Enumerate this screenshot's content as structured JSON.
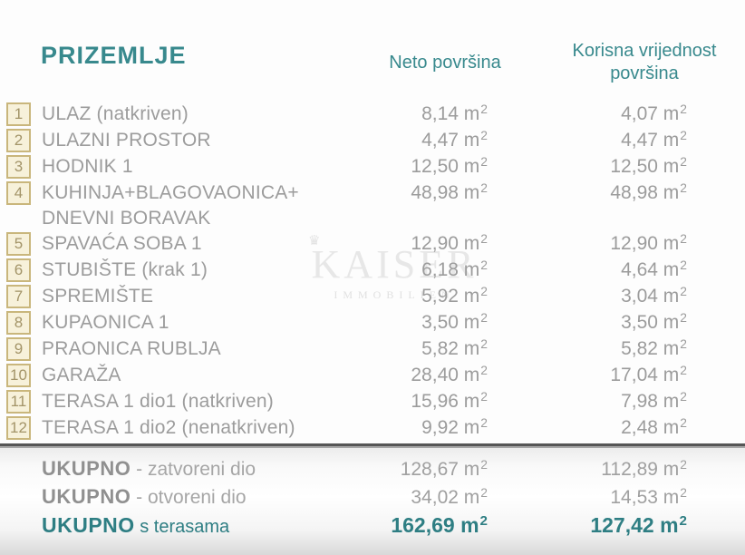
{
  "page": {
    "title": "PRIZEMLJE",
    "columns": {
      "neto": "Neto površina",
      "korisna": "Korisna vrijednost površina"
    }
  },
  "units": {
    "base": "m",
    "sup": "2"
  },
  "rows": [
    {
      "num": "1",
      "name": "ULAZ (natkriven)",
      "neto": "8,14",
      "korisna": "4,07"
    },
    {
      "num": "2",
      "name": "ULAZNI PROSTOR",
      "neto": "4,47",
      "korisna": "4,47"
    },
    {
      "num": "3",
      "name": "HODNIK 1",
      "neto": "12,50",
      "korisna": "12,50"
    },
    {
      "num": "4",
      "name": "KUHINJA+BLAGOVAONICA+",
      "name2": "DNEVNI BORAVAK",
      "neto": "48,98",
      "korisna": "48,98"
    },
    {
      "num": "5",
      "name": "SPAVAĆA SOBA 1",
      "neto": "12,90",
      "korisna": "12,90"
    },
    {
      "num": "6",
      "name": "STUBIŠTE  (krak 1)",
      "neto": "6,18",
      "korisna": "4,64"
    },
    {
      "num": "7",
      "name": "SPREMIŠTE",
      "neto": "5,92",
      "korisna": "3,04"
    },
    {
      "num": "8",
      "name": "KUPAONICA 1",
      "neto": "3,50",
      "korisna": "3,50"
    },
    {
      "num": "9",
      "name": "PRAONICA RUBLJA",
      "neto": "5,82",
      "korisna": "5,82"
    },
    {
      "num": "10",
      "name": "GARAŽA",
      "neto": "28,40",
      "korisna": "17,04"
    },
    {
      "num": "11",
      "name": "TERASA 1 dio1 (natkriven)",
      "neto": "15,96",
      "korisna": "7,98"
    },
    {
      "num": "12",
      "name": "TERASA 1 dio2 (nenatkriven)",
      "neto": "9,92",
      "korisna": "2,48"
    }
  ],
  "totals": [
    {
      "label_bold": "UKUPNO",
      "label_rest": "- zatvoreni dio",
      "neto": "128,67",
      "korisna": "112,89",
      "highlight": false
    },
    {
      "label_bold": "UKUPNO",
      "label_rest": "- otvoreni dio",
      "neto": "34,02",
      "korisna": "14,53",
      "highlight": false
    },
    {
      "label_bold": "UKUPNO",
      "label_rest": "s terasama",
      "neto": "162,69",
      "korisna": "127,42",
      "highlight": true
    }
  ],
  "watermark": {
    "crown": "♛",
    "text": "KAISER",
    "subtext": "IMMOBILIEN"
  },
  "colors": {
    "accent_teal": "#38898d",
    "accent_teal_dark": "#2e7e83",
    "text_gray": "#9c9c9c",
    "box_border": "#c9b67c",
    "box_fill": "#f7f1da",
    "separator_dark": "#565656"
  }
}
